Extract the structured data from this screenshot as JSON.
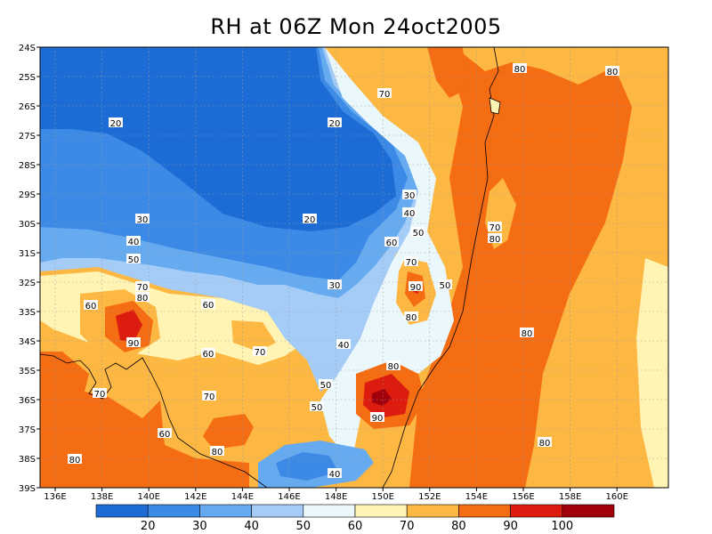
{
  "title": "RH at 06Z Mon 24oct2005",
  "map": {
    "lat_labels": [
      "24S",
      "25S",
      "26S",
      "27S",
      "28S",
      "29S",
      "30S",
      "31S",
      "32S",
      "33S",
      "34S",
      "35S",
      "36S",
      "37S",
      "38S",
      "39S"
    ],
    "lon_labels": [
      "136E",
      "138E",
      "140E",
      "142E",
      "144E",
      "146E",
      "148E",
      "150E",
      "152E",
      "154E",
      "156E",
      "158E",
      "160E"
    ],
    "grid": "dotted",
    "contour_labels": [
      "20",
      "20",
      "20",
      "30",
      "30",
      "30",
      "40",
      "40",
      "40",
      "40",
      "50",
      "50",
      "50",
      "50",
      "50",
      "60",
      "60",
      "60",
      "60",
      "60",
      "70",
      "70",
      "70",
      "70",
      "70",
      "70",
      "70",
      "80",
      "80",
      "80",
      "80",
      "80",
      "80",
      "80",
      "80",
      "80",
      "80",
      "90",
      "90",
      "90"
    ]
  },
  "colorbar": {
    "labels": [
      "20",
      "30",
      "40",
      "50",
      "60",
      "70",
      "80",
      "90",
      "100"
    ],
    "colors": [
      "#1d6cd6",
      "#3c8ae6",
      "#66aaf0",
      "#a4ccf7",
      "#eaf7fb",
      "#fff4b4",
      "#fdb743",
      "#f46d13",
      "#dc1c0e",
      "#a1000a"
    ]
  }
}
